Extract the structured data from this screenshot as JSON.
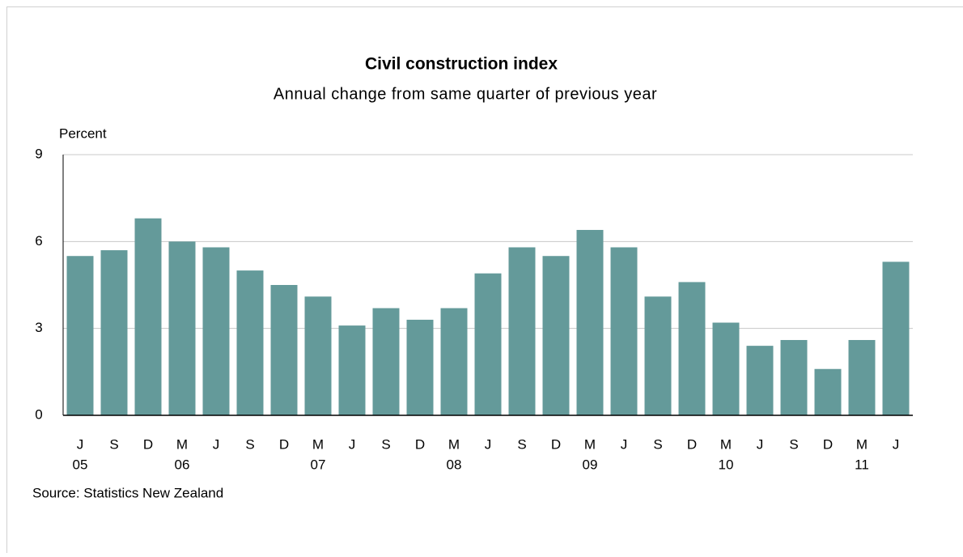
{
  "chart_data": {
    "type": "bar",
    "title": "Civil construction index",
    "subtitle": "Annual change from same quarter of previous year",
    "y_label": "Percent",
    "source": "Source: Statistics New Zealand",
    "categories": [
      "J",
      "S",
      "D",
      "M",
      "J",
      "S",
      "D",
      "M",
      "J",
      "S",
      "D",
      "M",
      "J",
      "S",
      "D",
      "M",
      "J",
      "S",
      "D",
      "M",
      "J",
      "S",
      "D",
      "M",
      "J"
    ],
    "years": [
      "05",
      null,
      null,
      "06",
      null,
      null,
      null,
      "07",
      null,
      null,
      null,
      "08",
      null,
      null,
      null,
      "09",
      null,
      null,
      null,
      "10",
      null,
      null,
      null,
      "11",
      null
    ],
    "values": [
      5.5,
      5.7,
      6.8,
      6.0,
      5.8,
      5.0,
      4.5,
      4.1,
      3.1,
      3.7,
      3.3,
      3.7,
      4.9,
      5.8,
      5.5,
      6.4,
      5.8,
      4.1,
      4.6,
      3.2,
      2.4,
      2.6,
      1.6,
      2.6,
      5.3
    ],
    "color": "#649a9a",
    "ylim": [
      0,
      9
    ],
    "yticks": [
      0,
      3,
      6,
      9
    ],
    "grid": true
  }
}
